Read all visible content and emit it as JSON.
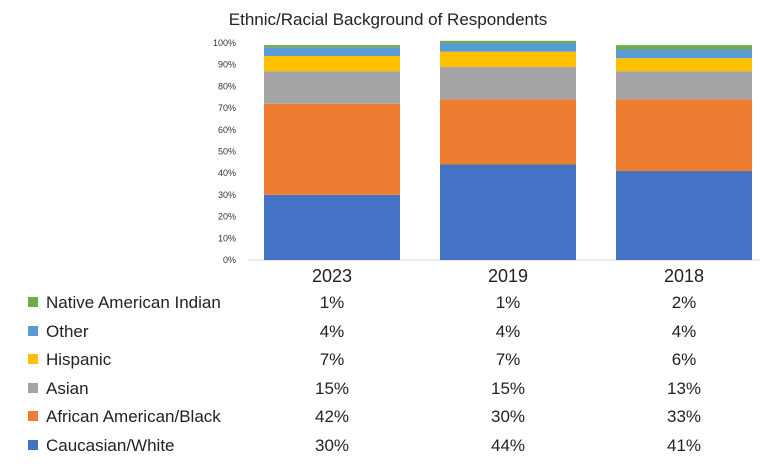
{
  "chart_data": {
    "type": "bar",
    "stacked": true,
    "title": "Ethnic/Racial Background of Respondents",
    "xlabel": "",
    "ylabel": "",
    "ylim": [
      0,
      100
    ],
    "yticks": [
      "0%",
      "10%",
      "20%",
      "30%",
      "40%",
      "50%",
      "60%",
      "70%",
      "80%",
      "90%",
      "100%"
    ],
    "categories": [
      "2023",
      "2019",
      "2018"
    ],
    "grid": false,
    "legend": "bottom-left data table",
    "series": [
      {
        "name": "Caucasian/White",
        "values": [
          30,
          44,
          41
        ],
        "labels": [
          "30%",
          "44%",
          "41%"
        ],
        "color": "#4472C4"
      },
      {
        "name": "African American/Black",
        "values": [
          42,
          30,
          33
        ],
        "labels": [
          "42%",
          "30%",
          "33%"
        ],
        "color": "#ED7D31"
      },
      {
        "name": "Asian",
        "values": [
          15,
          15,
          13
        ],
        "labels": [
          "15%",
          "15%",
          "13%"
        ],
        "color": "#A5A5A5"
      },
      {
        "name": "Hispanic",
        "values": [
          7,
          7,
          6
        ],
        "labels": [
          "7%",
          "7%",
          "6%"
        ],
        "color": "#FFC000"
      },
      {
        "name": "Other",
        "values": [
          4,
          4,
          4
        ],
        "labels": [
          "4%",
          "4%",
          "4%"
        ],
        "color": "#5B9BD5"
      },
      {
        "name": "Native American Indian",
        "values": [
          1,
          1,
          2
        ],
        "labels": [
          "1%",
          "1%",
          "2%"
        ],
        "color": "#70AD47"
      }
    ]
  }
}
